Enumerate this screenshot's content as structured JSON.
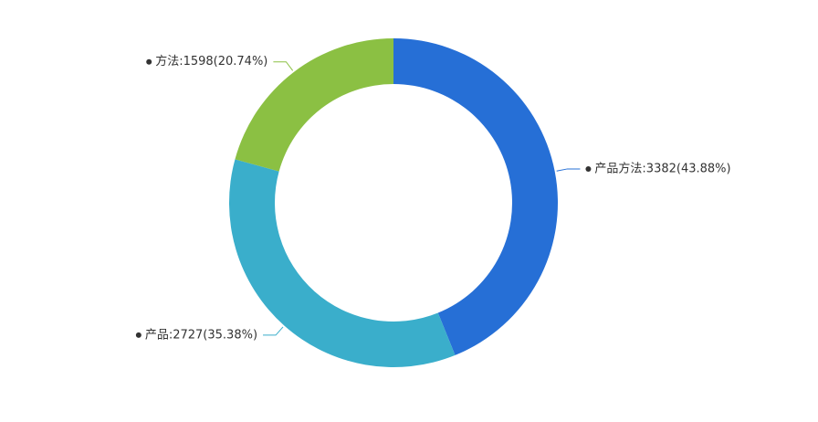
{
  "chart_data": {
    "type": "donut",
    "values": [
      3382,
      2727,
      1598
    ],
    "value_labels": [
      "产品方法:3382(43.88%)",
      "产品:2727(35.38%)",
      "方法:1598(20.74%)"
    ],
    "colors": [
      "#266fd6",
      "#3aaecb",
      "#8bc043"
    ]
  }
}
